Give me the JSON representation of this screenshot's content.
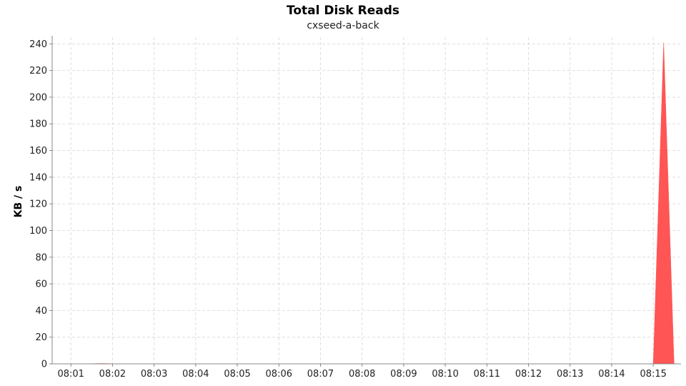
{
  "chart_data": {
    "type": "area",
    "title": "Total Disk Reads",
    "subtitle": "cxseed-a-back",
    "xlabel": "",
    "ylabel": "KB / s",
    "x": [
      "08:00:45",
      "08:01:15",
      "08:01:45",
      "08:02:15",
      "08:02:45",
      "08:03:15",
      "08:03:45",
      "08:04:15",
      "08:04:45",
      "08:05:15",
      "08:05:45",
      "08:06:15",
      "08:06:45",
      "08:07:15",
      "08:07:45",
      "08:08:15",
      "08:08:45",
      "08:09:15",
      "08:09:45",
      "08:10:15",
      "08:10:45",
      "08:11:15",
      "08:11:45",
      "08:12:15",
      "08:12:45",
      "08:13:15",
      "08:13:45",
      "08:14:15",
      "08:14:45",
      "08:15:00",
      "08:15:15",
      "08:15:30"
    ],
    "xticks": [
      "08:01",
      "08:02",
      "08:03",
      "08:04",
      "08:05",
      "08:06",
      "08:07",
      "08:08",
      "08:09",
      "08:10",
      "08:11",
      "08:12",
      "08:13",
      "08:14",
      "08:15"
    ],
    "series": [
      {
        "values": [
          0,
          0,
          0.3,
          0,
          0,
          0,
          0,
          0,
          0,
          0,
          0,
          0,
          0,
          0,
          0,
          0,
          0,
          0,
          0,
          0,
          0,
          0,
          0,
          0,
          0,
          0,
          0,
          0,
          0,
          0,
          241,
          0
        ],
        "color": "#ff5555"
      }
    ],
    "xlim": [
      "08:00:33",
      "08:15:40"
    ],
    "ylim": [
      0,
      245
    ],
    "yticks": [
      0,
      20,
      40,
      60,
      80,
      100,
      120,
      140,
      160,
      180,
      200,
      220,
      240
    ],
    "grid": true,
    "legend": "none"
  }
}
